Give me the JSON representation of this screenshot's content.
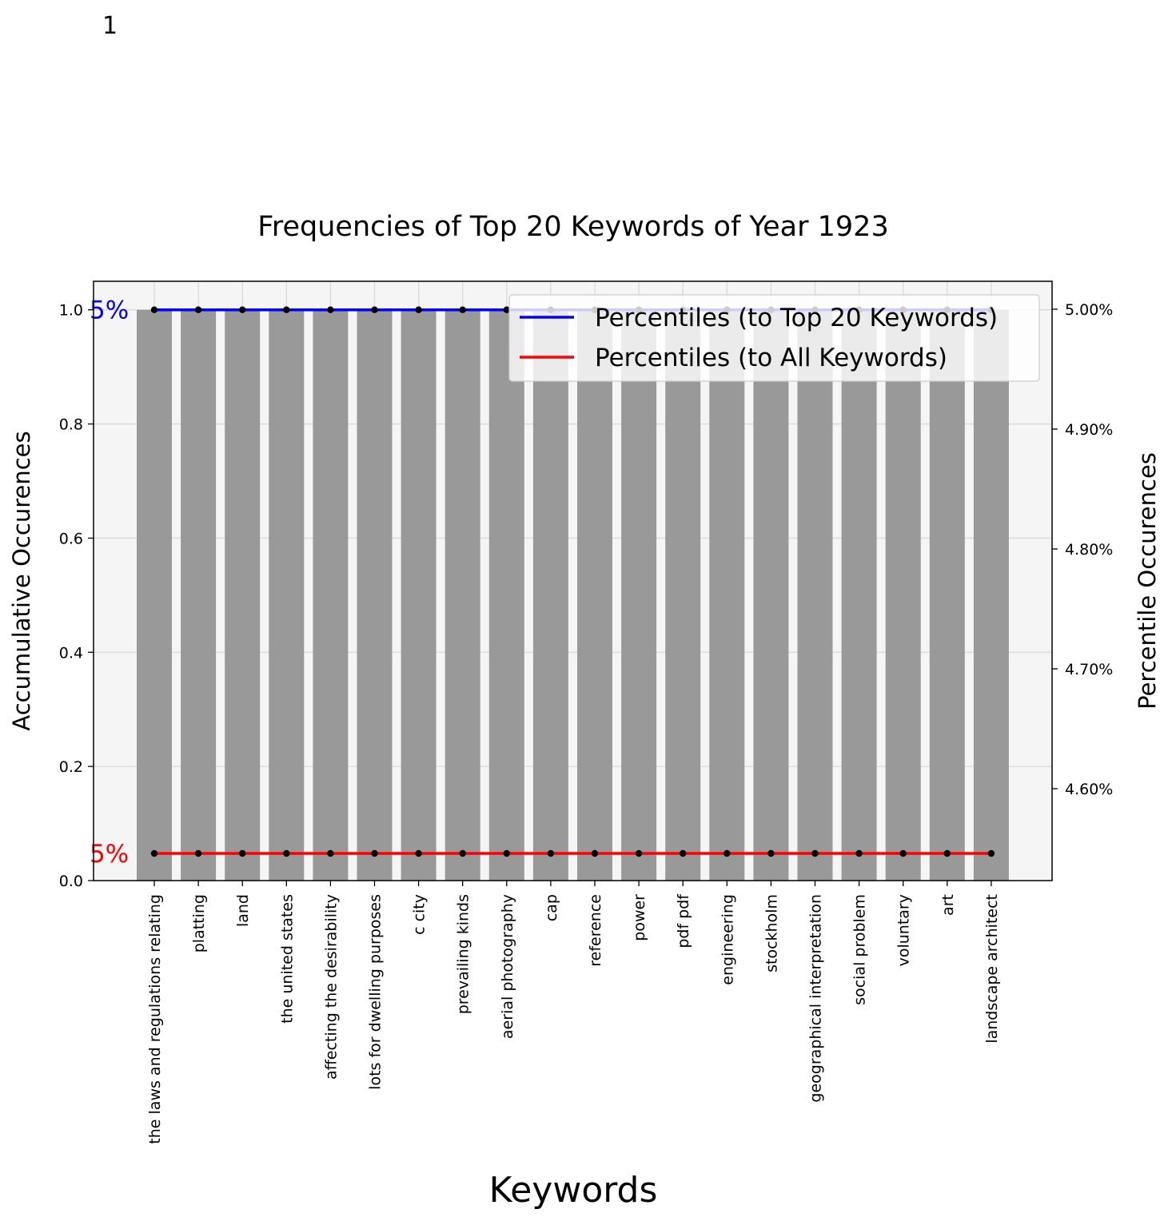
{
  "figure_label": "1",
  "chart_data": {
    "type": "bar",
    "title": "Frequencies of Top 20 Keywords of Year 1923",
    "xlabel": "Keywords",
    "ylabel": "Accumulative Occurences",
    "ylabel_right": "Percentile Occurences",
    "categories": [
      "the laws and regulations relating",
      "platting",
      "land",
      "the united states",
      "affecting the desirability",
      "lots for dwelling purposes",
      "c city",
      "prevailing kinds",
      "aerial photography",
      "cap",
      "reference",
      "power",
      "pdf pdf",
      "engineering",
      "stockholm",
      "geographical interpretation",
      "social problem",
      "voluntary",
      "art",
      "landscape architect"
    ],
    "values": [
      1,
      1,
      1,
      1,
      1,
      1,
      1,
      1,
      1,
      1,
      1,
      1,
      1,
      1,
      1,
      1,
      1,
      1,
      1,
      1
    ],
    "ylim": [
      0,
      1.05
    ],
    "yticks": [
      "0.0",
      "0.2",
      "0.4",
      "0.6",
      "0.8",
      "1.0"
    ],
    "y2ticks": [
      "4.60%",
      "4.70%",
      "4.80%",
      "4.90%",
      "5.00%"
    ],
    "series": [
      {
        "name": "Percentiles (to Top 20 Keywords)",
        "color": "#0000ff",
        "values": [
          1,
          1,
          1,
          1,
          1,
          1,
          1,
          1,
          1,
          1,
          1,
          1,
          1,
          1,
          1,
          1,
          1,
          1,
          1,
          1
        ],
        "end_label": "5%"
      },
      {
        "name": "Percentiles (to All Keywords)",
        "color": "#ff0000",
        "values": [
          0.0476,
          0.0476,
          0.0476,
          0.0476,
          0.0476,
          0.0476,
          0.0476,
          0.0476,
          0.0476,
          0.0476,
          0.0476,
          0.0476,
          0.0476,
          0.0476,
          0.0476,
          0.0476,
          0.0476,
          0.0476,
          0.0476,
          0.0476
        ],
        "end_label": "5%"
      }
    ],
    "bar_color": "#999999",
    "plot_background": "#f5f5f5",
    "grid": true,
    "legend_position": "top-right"
  }
}
